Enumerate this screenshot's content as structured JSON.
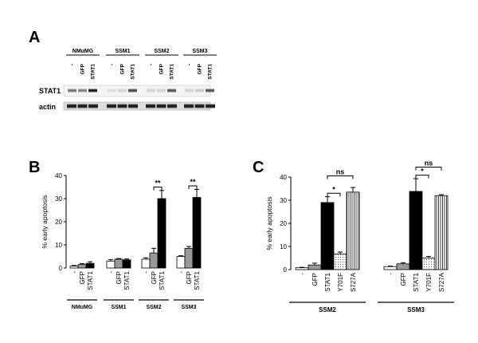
{
  "panelA": {
    "letter": "A",
    "groups": [
      "NMuMG",
      "SSM1",
      "SSM2",
      "SSM3"
    ],
    "lanes": [
      "-",
      "GFP",
      "STAT1"
    ],
    "rows": [
      "STAT1",
      "actin"
    ]
  },
  "chart_data": [
    {
      "type": "bar",
      "panel": "B",
      "ylabel": "% early apoptosis",
      "ylim": [
        0,
        40
      ],
      "yticks": [
        0,
        10,
        20,
        30,
        40
      ],
      "categories": [
        "-",
        "GFP",
        "STAT1"
      ],
      "groups": [
        {
          "name": "NMuMG",
          "values": [
            0.8,
            1.5,
            2.0
          ],
          "errors": [
            0.3,
            0.4,
            0.7
          ]
        },
        {
          "name": "SSM1",
          "values": [
            3.0,
            3.8,
            3.5
          ],
          "errors": [
            0.6,
            0.3,
            0.4
          ]
        },
        {
          "name": "SSM2",
          "values": [
            3.8,
            6.5,
            30.0
          ],
          "errors": [
            0.6,
            2.0,
            3.5
          ]
        },
        {
          "name": "SSM3",
          "values": [
            5.0,
            8.5,
            30.5
          ],
          "errors": [
            0.3,
            0.8,
            3.5
          ]
        }
      ],
      "bar_colors": {
        "-": "#ffffff",
        "GFP": "#999999",
        "STAT1": "#000000"
      },
      "annotations": [
        {
          "group": "SSM2",
          "between": [
            "GFP",
            "STAT1"
          ],
          "text": "**"
        },
        {
          "group": "SSM3",
          "between": [
            "GFP",
            "STAT1"
          ],
          "text": "**"
        }
      ]
    },
    {
      "type": "bar",
      "panel": "C",
      "ylabel": "% early apoptosis",
      "ylim": [
        0,
        40
      ],
      "yticks": [
        0,
        10,
        20,
        30,
        40
      ],
      "categories": [
        "-",
        "GFP",
        "STAT1",
        "Y701F",
        "S727A"
      ],
      "groups": [
        {
          "name": "SSM2",
          "values": [
            0.8,
            2.0,
            29.0,
            6.8,
            33.5
          ],
          "errors": [
            0.2,
            0.8,
            2.5,
            0.8,
            2.0
          ]
        },
        {
          "name": "SSM3",
          "values": [
            1.3,
            2.5,
            33.8,
            5.0,
            32.0
          ],
          "errors": [
            0.2,
            0.5,
            5.5,
            0.7,
            0.4
          ]
        }
      ],
      "bar_fills": {
        "-": "white",
        "GFP": "gray",
        "STAT1": "black",
        "Y701F": "dotted",
        "S727A": "vertical-stripes"
      },
      "annotations": [
        {
          "group": "SSM2",
          "between": [
            "STAT1",
            "Y701F"
          ],
          "text": "*"
        },
        {
          "group": "SSM2",
          "between": [
            "STAT1",
            "S727A"
          ],
          "text": "ns"
        },
        {
          "group": "SSM3",
          "between": [
            "STAT1",
            "Y701F"
          ],
          "text": "*"
        },
        {
          "group": "SSM3",
          "between": [
            "STAT1",
            "S727A"
          ],
          "text": "ns"
        }
      ]
    }
  ]
}
